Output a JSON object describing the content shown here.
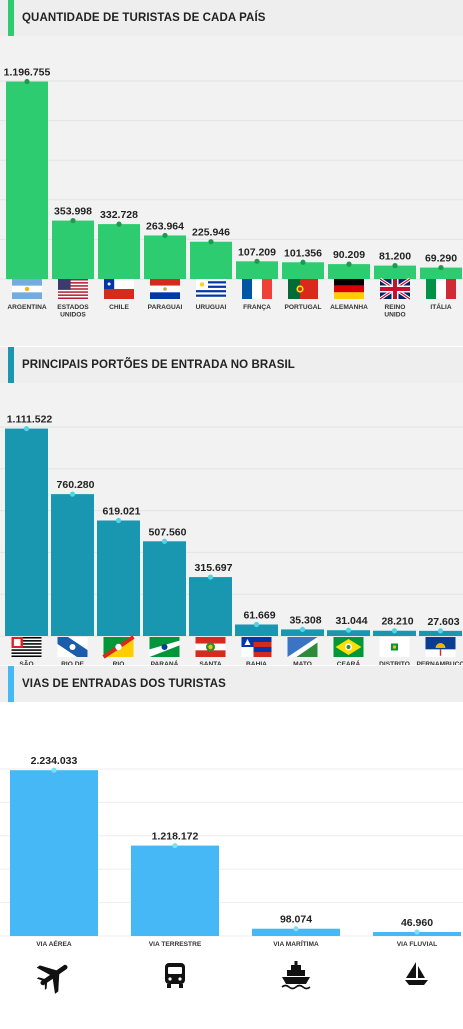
{
  "colors": {
    "section1": "#2ecc71",
    "section2": "#1a97b0",
    "section3": "#45b8f5",
    "dot1": "#1e9a4e",
    "dot2": "#4fd6e6",
    "dot3": "#7fe0f0"
  },
  "section1": {
    "title": "QUANTIDADE DE TURISTAS DE CADA PAÍS"
  },
  "section2": {
    "title": "PRINCIPAIS PORTÕES DE ENTRADA NO BRASIL"
  },
  "section3": {
    "title": "VIAS DE ENTRADAS DOS TURISTAS"
  },
  "chart_data": [
    {
      "type": "bar",
      "title": "QUANTIDADE DE TURISTAS DE CADA PAÍS",
      "categories": [
        "ARGENTINA",
        "ESTADOS UNIDOS",
        "CHILE",
        "PARAGUAI",
        "URUGUAI",
        "FRANÇA",
        "PORTUGAL",
        "ALEMANHA",
        "REINO UNIDO",
        "ITÁLIA"
      ],
      "values": [
        1196755,
        353998,
        332728,
        263964,
        225946,
        107209,
        101356,
        90209,
        81200,
        69290
      ],
      "labels": [
        "1.196.755",
        "353.998",
        "332.728",
        "263.964",
        "225.946",
        "107.209",
        "101.356",
        "90.209",
        "81.200",
        "69.290"
      ],
      "flags": [
        "argentina-flag",
        "usa-flag",
        "chile-flag",
        "paraguay-flag",
        "uruguay-flag",
        "france-flag",
        "portugal-flag",
        "germany-flag",
        "uk-flag",
        "italy-flag"
      ],
      "ylim": [
        0,
        1200000
      ],
      "grid": true
    },
    {
      "type": "bar",
      "title": "PRINCIPAIS PORTÕES DE ENTRADA NO BRASIL",
      "categories": [
        "SÃO PAULO",
        "RIO DE JANEIRO",
        "RIO GRANDE DO SUL",
        "PARANÁ",
        "SANTA CATARINA",
        "BAHIA",
        "MATO GROSSO DO SUL",
        "CEARÁ",
        "DISTRITO FEDERAL",
        "PERNAMBUCO"
      ],
      "values": [
        1111522,
        760280,
        619021,
        507560,
        315697,
        61669,
        35308,
        31044,
        28210,
        27603
      ],
      "labels": [
        "1.111.522",
        "760.280",
        "619.021",
        "507.560",
        "315.697",
        "61.669",
        "35.308",
        "31.044",
        "28.210",
        "27.603"
      ],
      "flags": [
        "sao-paulo-flag",
        "rio-de-janeiro-flag",
        "rio-grande-do-sul-flag",
        "parana-flag",
        "santa-catarina-flag",
        "bahia-flag",
        "mato-grosso-do-sul-flag",
        "ceara-flag",
        "distrito-federal-flag",
        "pernambuco-flag"
      ],
      "ylim": [
        0,
        1120000
      ],
      "grid": true
    },
    {
      "type": "bar",
      "title": "VIAS DE ENTRADAS DOS TURISTAS",
      "categories": [
        "VIA AÉREA",
        "VIA TERRESTRE",
        "VIA MARÍTIMA",
        "VIA FLUVIAL"
      ],
      "values": [
        2234033,
        1218172,
        98074,
        46960
      ],
      "labels": [
        "2.234.033",
        "1.218.172",
        "98.074",
        "46.960"
      ],
      "icons": [
        "airplane-icon",
        "bus-icon",
        "ship-icon",
        "sailboat-icon"
      ],
      "ylim": [
        0,
        2250000
      ],
      "grid": true
    }
  ]
}
